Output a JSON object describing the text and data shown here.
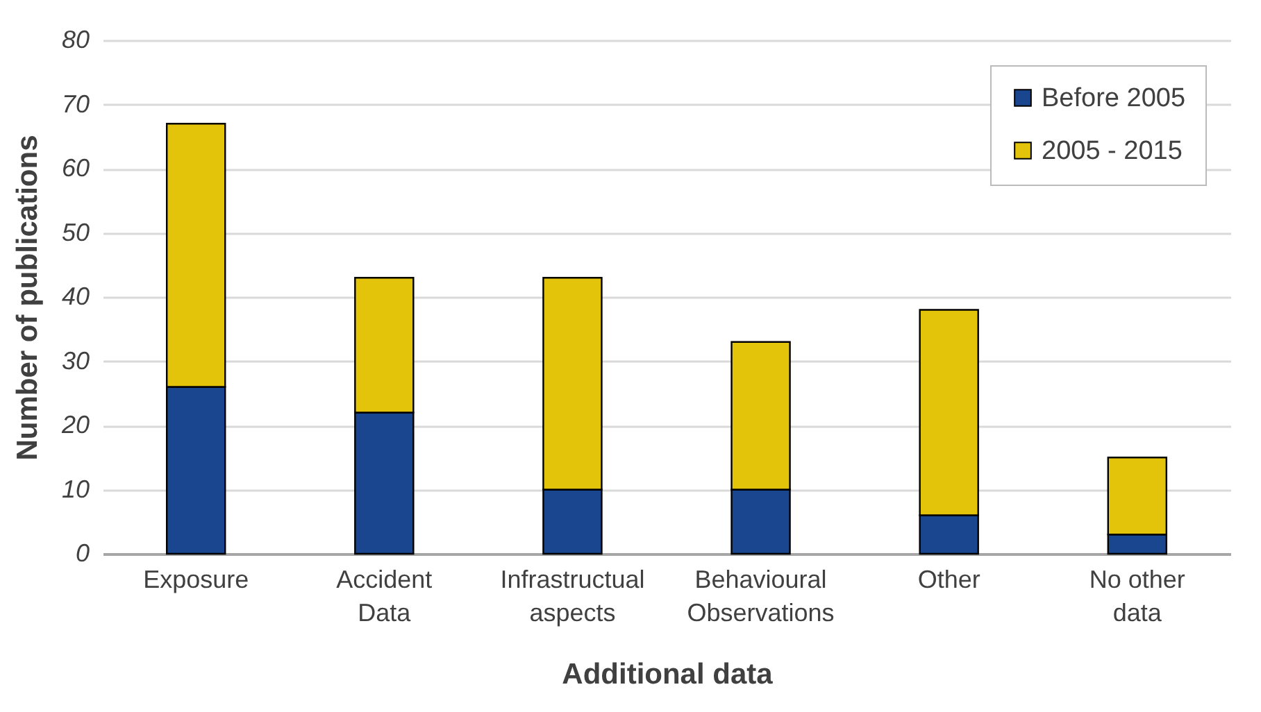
{
  "chart_data": {
    "type": "bar",
    "stacked": true,
    "xlabel": "Additional data",
    "ylabel": "Number of publications",
    "categories": [
      "Exposure",
      "Accident Data",
      "Infrastructual aspects",
      "Behavioural Observations",
      "Other",
      "No other data"
    ],
    "series": [
      {
        "name": "Before 2005",
        "color": "#1a468f",
        "values": [
          26,
          22,
          10,
          10,
          6,
          3
        ]
      },
      {
        "name": "2005 - 2015",
        "color": "#e4c40a",
        "values": [
          41,
          21,
          33,
          23,
          32,
          12
        ]
      }
    ],
    "ylim": [
      0,
      80
    ],
    "yticks": [
      0,
      10,
      20,
      30,
      40,
      50,
      60,
      70,
      80
    ],
    "grid": "y",
    "legend": "top right"
  }
}
